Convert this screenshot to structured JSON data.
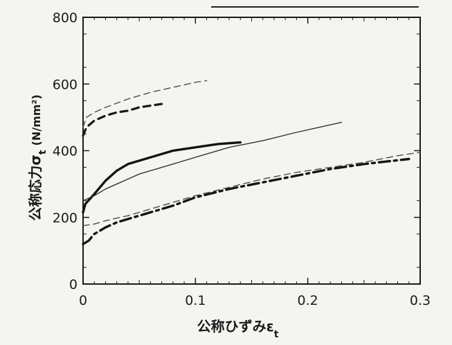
{
  "chart_data": {
    "type": "line",
    "title": "",
    "xlabel": "公称ひずみε",
    "xlabel_subscript": "t",
    "ylabel": "公称応力σ",
    "ylabel_subscript": "t",
    "ylabel_unit": "(N/mm²)",
    "xlim": [
      0,
      0.3
    ],
    "ylim": [
      0,
      800
    ],
    "x_ticks": [
      0,
      0.1,
      0.2,
      0.3
    ],
    "x_tick_labels": [
      "0",
      "0.1",
      "0.2",
      "0.3"
    ],
    "y_ticks": [
      0,
      200,
      400,
      600,
      800
    ],
    "y_tick_labels": [
      "0",
      "200",
      "400",
      "600",
      "800"
    ],
    "grid": false,
    "series": [
      {
        "style": "thick-solid",
        "x": [
          0,
          0.002,
          0.01,
          0.02,
          0.03,
          0.04,
          0.06,
          0.08,
          0.1,
          0.12,
          0.14
        ],
        "y": [
          215,
          240,
          270,
          310,
          340,
          360,
          380,
          400,
          410,
          420,
          425
        ]
      },
      {
        "style": "thin-solid",
        "x": [
          0,
          0.01,
          0.02,
          0.05,
          0.08,
          0.1,
          0.13,
          0.16,
          0.19,
          0.21,
          0.23
        ],
        "y": [
          250,
          265,
          285,
          330,
          360,
          380,
          410,
          430,
          455,
          470,
          485
        ]
      },
      {
        "style": "thin-dashed",
        "x": [
          0,
          0.003,
          0.01,
          0.02,
          0.04,
          0.06,
          0.08,
          0.1,
          0.11
        ],
        "y": [
          470,
          500,
          515,
          530,
          555,
          575,
          590,
          605,
          610
        ]
      },
      {
        "style": "thick-dashed",
        "x": [
          0,
          0.003,
          0.01,
          0.02,
          0.03,
          0.04,
          0.05,
          0.06,
          0.07
        ],
        "y": [
          445,
          470,
          490,
          505,
          515,
          520,
          530,
          535,
          540
        ]
      },
      {
        "style": "thick-dashdot",
        "x": [
          0,
          0.005,
          0.01,
          0.02,
          0.03,
          0.05,
          0.08,
          0.1,
          0.13,
          0.16,
          0.19,
          0.22,
          0.25,
          0.29
        ],
        "y": [
          120,
          130,
          150,
          170,
          185,
          205,
          235,
          260,
          285,
          305,
          325,
          345,
          360,
          375
        ]
      },
      {
        "style": "thin-dashed",
        "x": [
          0,
          0.01,
          0.02,
          0.04,
          0.07,
          0.1,
          0.13,
          0.16,
          0.19,
          0.22,
          0.25,
          0.28,
          0.3
        ],
        "y": [
          175,
          180,
          190,
          205,
          235,
          265,
          290,
          315,
          335,
          350,
          365,
          385,
          395
        ]
      }
    ]
  }
}
